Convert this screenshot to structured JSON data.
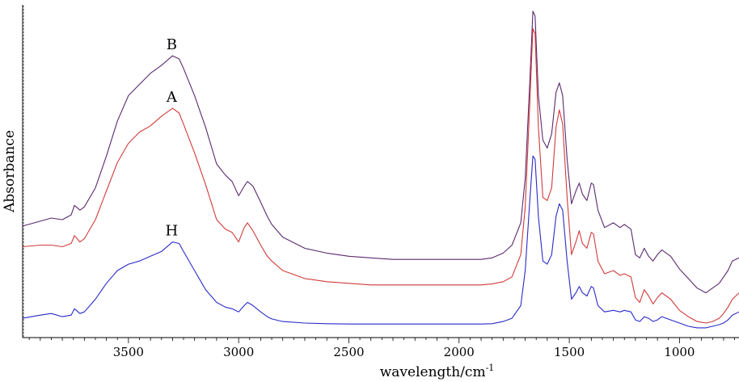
{
  "chart_data": {
    "type": "line",
    "title": "",
    "xlabel": "wavelength/cm",
    "xlabel_superscript": "-1",
    "ylabel": "Absorbance",
    "xlim": [
      3980,
      730
    ],
    "x_reversed": true,
    "ylim": [
      0,
      1
    ],
    "y_ticks_labeled": false,
    "grid": false,
    "legend": "none",
    "x_ticks": [
      3500,
      3000,
      2500,
      2000,
      1500,
      1000
    ],
    "x_tick_labels": [
      "3500",
      "3000",
      "2500",
      "2000",
      "1500",
      "1000"
    ],
    "series": [
      {
        "name": "B",
        "color": "#5a2a6e",
        "x": [
          3980,
          3900,
          3850,
          3800,
          3760,
          3745,
          3720,
          3700,
          3650,
          3600,
          3550,
          3500,
          3450,
          3400,
          3350,
          3300,
          3270,
          3250,
          3200,
          3150,
          3100,
          3060,
          3030,
          3000,
          2975,
          2960,
          2935,
          2900,
          2870,
          2850,
          2800,
          2700,
          2600,
          2500,
          2400,
          2300,
          2200,
          2100,
          2000,
          1900,
          1850,
          1800,
          1760,
          1720,
          1700,
          1680,
          1665,
          1655,
          1640,
          1620,
          1600,
          1580,
          1560,
          1545,
          1530,
          1510,
          1490,
          1470,
          1455,
          1440,
          1420,
          1400,
          1390,
          1370,
          1340,
          1300,
          1270,
          1250,
          1220,
          1200,
          1180,
          1160,
          1140,
          1120,
          1100,
          1080,
          1060,
          1040,
          1000,
          960,
          920,
          880,
          850,
          820,
          800,
          780,
          760,
          730
        ],
        "y": [
          0.31,
          0.325,
          0.335,
          0.33,
          0.345,
          0.375,
          0.36,
          0.37,
          0.43,
          0.53,
          0.64,
          0.72,
          0.755,
          0.79,
          0.815,
          0.845,
          0.835,
          0.805,
          0.72,
          0.62,
          0.505,
          0.47,
          0.45,
          0.405,
          0.435,
          0.45,
          0.435,
          0.385,
          0.34,
          0.315,
          0.275,
          0.24,
          0.225,
          0.215,
          0.21,
          0.205,
          0.205,
          0.205,
          0.205,
          0.205,
          0.21,
          0.225,
          0.25,
          0.32,
          0.46,
          0.75,
          0.985,
          0.97,
          0.72,
          0.58,
          0.555,
          0.6,
          0.73,
          0.76,
          0.72,
          0.52,
          0.38,
          0.42,
          0.445,
          0.41,
          0.39,
          0.445,
          0.44,
          0.36,
          0.305,
          0.32,
          0.305,
          0.315,
          0.3,
          0.22,
          0.21,
          0.24,
          0.215,
          0.2,
          0.22,
          0.235,
          0.225,
          0.215,
          0.175,
          0.145,
          0.115,
          0.1,
          0.115,
          0.13,
          0.15,
          0.17,
          0.2,
          0.21
        ]
      },
      {
        "name": "A",
        "color": "#d23a3a",
        "x": [
          3980,
          3900,
          3850,
          3800,
          3760,
          3745,
          3720,
          3700,
          3650,
          3600,
          3550,
          3500,
          3450,
          3400,
          3350,
          3300,
          3270,
          3250,
          3200,
          3150,
          3100,
          3060,
          3030,
          3000,
          2975,
          2960,
          2935,
          2900,
          2870,
          2850,
          2800,
          2700,
          2600,
          2500,
          2400,
          2300,
          2200,
          2100,
          2000,
          1900,
          1850,
          1800,
          1760,
          1720,
          1700,
          1680,
          1665,
          1655,
          1640,
          1620,
          1600,
          1580,
          1560,
          1545,
          1530,
          1510,
          1490,
          1470,
          1455,
          1440,
          1420,
          1400,
          1390,
          1370,
          1340,
          1300,
          1270,
          1250,
          1220,
          1200,
          1180,
          1160,
          1140,
          1120,
          1100,
          1080,
          1060,
          1040,
          1000,
          960,
          920,
          880,
          850,
          820,
          800,
          780,
          760,
          730
        ],
        "y": [
          0.245,
          0.25,
          0.25,
          0.245,
          0.255,
          0.28,
          0.26,
          0.27,
          0.33,
          0.42,
          0.51,
          0.57,
          0.605,
          0.625,
          0.655,
          0.68,
          0.665,
          0.63,
          0.54,
          0.44,
          0.33,
          0.3,
          0.29,
          0.26,
          0.305,
          0.32,
          0.295,
          0.25,
          0.215,
          0.2,
          0.17,
          0.145,
          0.135,
          0.13,
          0.125,
          0.125,
          0.125,
          0.125,
          0.125,
          0.125,
          0.128,
          0.135,
          0.15,
          0.22,
          0.37,
          0.68,
          0.93,
          0.915,
          0.62,
          0.4,
          0.39,
          0.43,
          0.62,
          0.675,
          0.63,
          0.4,
          0.22,
          0.26,
          0.295,
          0.255,
          0.24,
          0.29,
          0.285,
          0.2,
          0.16,
          0.17,
          0.155,
          0.16,
          0.15,
          0.085,
          0.07,
          0.11,
          0.09,
          0.065,
          0.085,
          0.1,
          0.09,
          0.08,
          0.045,
          0.025,
          0.01,
          0.005,
          0.01,
          0.02,
          0.035,
          0.055,
          0.08,
          0.1
        ]
      },
      {
        "name": "H",
        "color": "#2a2ac8",
        "x": [
          3980,
          3900,
          3850,
          3800,
          3760,
          3745,
          3720,
          3700,
          3650,
          3600,
          3550,
          3500,
          3450,
          3400,
          3350,
          3300,
          3270,
          3250,
          3200,
          3150,
          3100,
          3060,
          3030,
          3000,
          2975,
          2960,
          2935,
          2900,
          2870,
          2850,
          2800,
          2700,
          2600,
          2500,
          2400,
          2300,
          2200,
          2100,
          2000,
          1900,
          1850,
          1800,
          1760,
          1720,
          1700,
          1680,
          1665,
          1655,
          1640,
          1620,
          1600,
          1580,
          1560,
          1545,
          1530,
          1510,
          1490,
          1470,
          1455,
          1440,
          1420,
          1400,
          1390,
          1370,
          1340,
          1300,
          1270,
          1250,
          1220,
          1200,
          1180,
          1160,
          1140,
          1120,
          1100,
          1080,
          1060,
          1040,
          1000,
          960,
          920,
          880,
          850,
          820,
          800,
          780,
          760,
          730
        ],
        "y": [
          0.02,
          0.03,
          0.035,
          0.025,
          0.03,
          0.05,
          0.035,
          0.04,
          0.08,
          0.13,
          0.17,
          0.19,
          0.2,
          0.215,
          0.23,
          0.26,
          0.255,
          0.23,
          0.17,
          0.11,
          0.07,
          0.055,
          0.05,
          0.04,
          0.06,
          0.07,
          0.06,
          0.04,
          0.025,
          0.018,
          0.01,
          0.005,
          0.003,
          0.002,
          0.002,
          0.002,
          0.002,
          0.002,
          0.002,
          0.002,
          0.003,
          0.01,
          0.02,
          0.06,
          0.17,
          0.38,
          0.53,
          0.52,
          0.34,
          0.2,
          0.19,
          0.22,
          0.34,
          0.38,
          0.36,
          0.2,
          0.08,
          0.1,
          0.12,
          0.1,
          0.09,
          0.12,
          0.115,
          0.06,
          0.04,
          0.045,
          0.04,
          0.045,
          0.04,
          0.015,
          0.01,
          0.025,
          0.02,
          0.01,
          0.015,
          0.025,
          0.02,
          0.015,
          0.005,
          -0.005,
          -0.01,
          -0.01,
          -0.005,
          0.0,
          0.005,
          0.015,
          0.03,
          0.04
        ]
      }
    ],
    "annotations": [
      {
        "text": "B",
        "x": 3300,
        "y": 0.845
      },
      {
        "text": "A",
        "x": 3300,
        "y": 0.68
      },
      {
        "text": "H",
        "x": 3300,
        "y": 0.26
      }
    ]
  }
}
